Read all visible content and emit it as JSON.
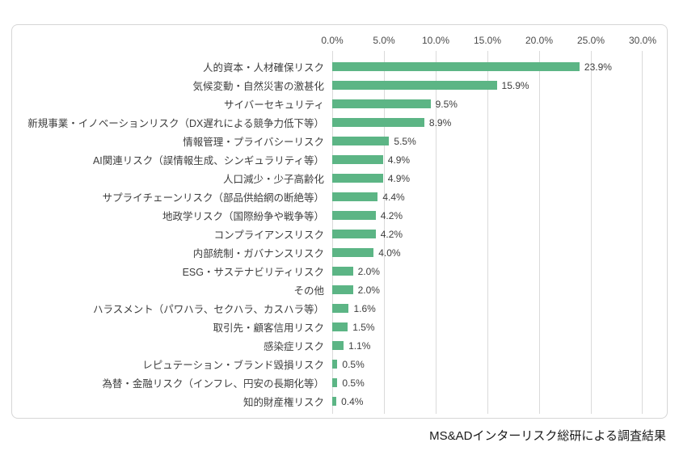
{
  "caption": "MS&ADインターリスク総研による調査結果",
  "chart_data": {
    "type": "bar",
    "orientation": "horizontal",
    "title": "",
    "xlabel": "",
    "ylabel": "",
    "xlim": [
      0,
      30
    ],
    "x_ticks": [
      "0.0%",
      "5.0%",
      "10.0%",
      "15.0%",
      "20.0%",
      "25.0%",
      "30.0%"
    ],
    "grid": true,
    "legend": false,
    "bar_color": "#5cb585",
    "categories": [
      "人的資本・人材確保リスク",
      "気候変動・自然災害の激甚化",
      "サイバーセキュリティ",
      "新規事業・イノベーションリスク（DX遅れによる競争力低下等）",
      "情報管理・プライバシーリスク",
      "AI関連リスク（誤情報生成、シンギュラリティ等）",
      "人口減少・少子高齢化",
      "サプライチェーンリスク（部品供給網の断絶等）",
      "地政学リスク（国際紛争や戦争等）",
      "コンプライアンスリスク",
      "内部統制・ガバナンスリスク",
      "ESG・サステナビリティリスク",
      "その他",
      "ハラスメント（パワハラ、セクハラ、カスハラ等）",
      "取引先・顧客信用リスク",
      "感染症リスク",
      "レピュテーション・ブランド毀損リスク",
      "為替・金融リスク（インフレ、円安の長期化等）",
      "知的財産権リスク"
    ],
    "values": [
      23.9,
      15.9,
      9.5,
      8.9,
      5.5,
      4.9,
      4.9,
      4.4,
      4.2,
      4.2,
      4.0,
      2.0,
      2.0,
      1.6,
      1.5,
      1.1,
      0.5,
      0.5,
      0.4
    ],
    "value_labels": [
      "23.9%",
      "15.9%",
      "9.5%",
      "8.9%",
      "5.5%",
      "4.9%",
      "4.9%",
      "4.4%",
      "4.2%",
      "4.2%",
      "4.0%",
      "2.0%",
      "2.0%",
      "1.6%",
      "1.5%",
      "1.1%",
      "0.5%",
      "0.5%",
      "0.4%"
    ]
  }
}
